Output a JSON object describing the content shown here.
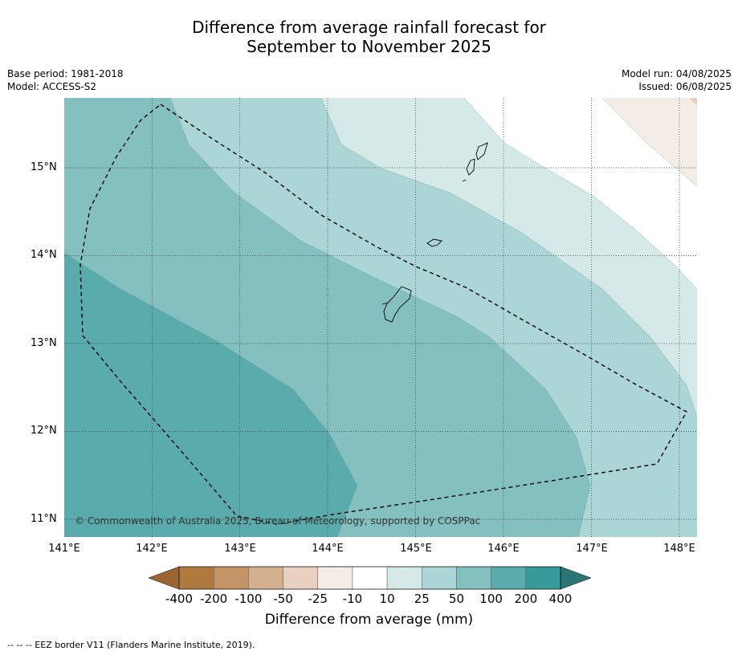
{
  "title_line1": "Difference from average rainfall forecast for",
  "title_line2": "September to November 2025",
  "base_period": "Base period: 1981-2018",
  "model": "Model: ACCESS-S2",
  "model_run": "Model run: 04/08/2025",
  "issued": "Issued: 06/08/2025",
  "copyright": "© Commonwealth of Australia 2025, Bureau of Meteorology, supported by COSPPac",
  "lat_labels": [
    "15°N",
    "14°N",
    "13°N",
    "12°N",
    "11°N"
  ],
  "lon_labels": [
    "141°E",
    "142°E",
    "143°E",
    "144°E",
    "145°E",
    "146°E",
    "147°E",
    "148°E"
  ],
  "colorbar": {
    "title": "Difference from average (mm)",
    "labels": [
      "-400",
      "-200",
      "-100",
      "-50",
      "-25",
      "-10",
      "10",
      "25",
      "50",
      "100",
      "200",
      "400"
    ],
    "colors": [
      "#9b6433",
      "#b07a3f",
      "#c29466",
      "#d5b08e",
      "#e7d0bf",
      "#f3ede6",
      "#ffffff",
      "#d4e9e8",
      "#acd5d5",
      "#85c0c0",
      "#5aabab",
      "#379a9a",
      "#2b7575"
    ]
  },
  "footer": "--  --  -- EEZ border V11 (Flanders Marine Institute, 2019)."
}
